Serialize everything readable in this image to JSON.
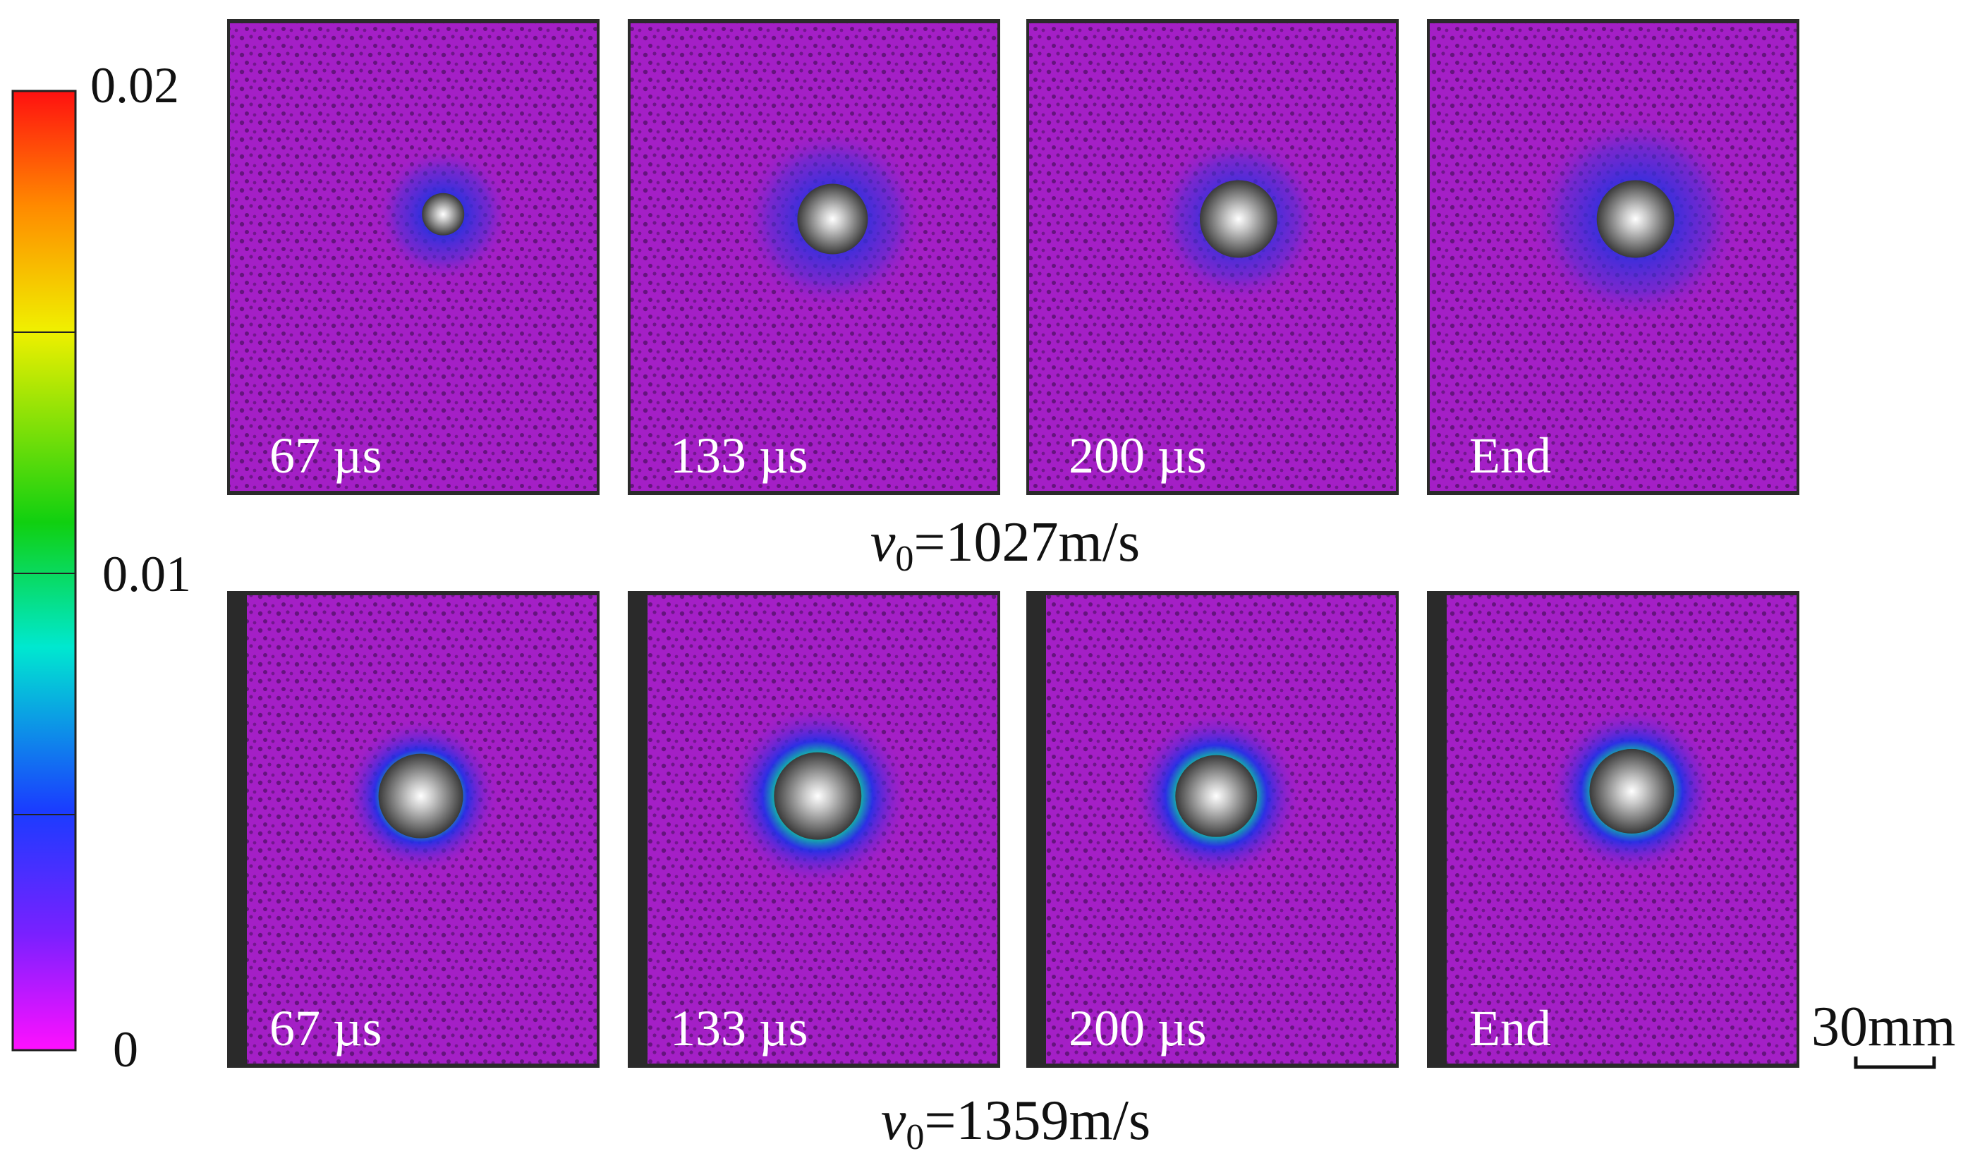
{
  "colorbar": {
    "labels": [
      "0.02",
      "0.01",
      "0"
    ]
  },
  "rows": [
    {
      "panels": [
        "67 µs",
        "133 µs",
        "200 µs",
        "End"
      ],
      "caption": {
        "symbol": "v",
        "subscript": "0",
        "text": "=1027m/s"
      }
    },
    {
      "panels": [
        "67 µs",
        "133 µs",
        "200 µs",
        "End"
      ],
      "caption": {
        "symbol": "v",
        "subscript": "0",
        "text": "=1359m/s"
      }
    }
  ],
  "scale_bar": "30mm"
}
